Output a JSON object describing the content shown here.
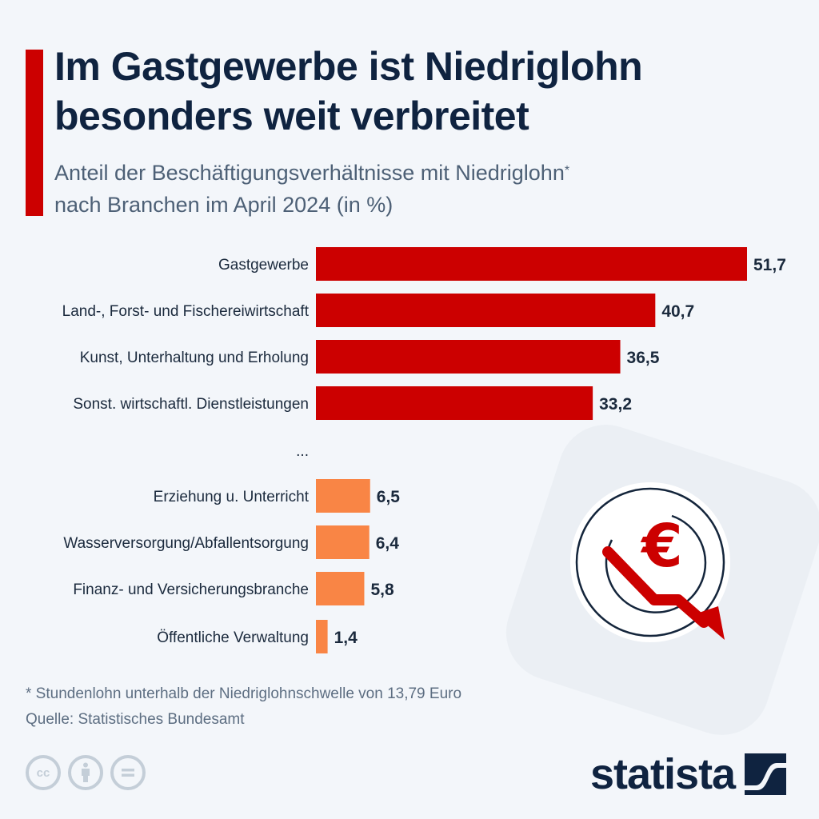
{
  "header": {
    "title": "Im Gastgewerbe ist Niedriglohn besonders weit verbreitet",
    "subtitle_line1": "Anteil der Beschäftigungsverhältnisse mit Niedriglohn",
    "subtitle_marker": "*",
    "subtitle_line2": "nach Branchen im April 2024 (in %)"
  },
  "chart_data": {
    "type": "bar",
    "orientation": "horizontal",
    "title": "Im Gastgewerbe ist Niedriglohn besonders weit verbreitet",
    "subtitle": "Anteil der Beschäftigungsverhältnisse mit Niedriglohn* nach Branchen im April 2024 (in %)",
    "xlabel": "",
    "ylabel": "",
    "unit": "%",
    "xlim": [
      0,
      51.7
    ],
    "grid": false,
    "legend": "none",
    "gap_label": "...",
    "categories": [
      "Gastgewerbe",
      "Land-, Forst- und Fischereiwirtschaft",
      "Kunst, Unterhaltung und Erholung",
      "Sonst. wirtschaftl. Dienstleistungen",
      "Erziehung u. Unterricht",
      "Wasserversorgung/Abfallentsorgung",
      "Finanz- und Versicherungsbranche",
      "Öffentliche Verwaltung"
    ],
    "values": [
      51.7,
      40.7,
      36.5,
      33.2,
      6.5,
      6.4,
      5.8,
      1.4
    ],
    "value_labels": [
      "51,7",
      "40,7",
      "36,5",
      "33,2",
      "6,5",
      "6,4",
      "5,8",
      "1,4"
    ],
    "groups": [
      "top",
      "top",
      "top",
      "top",
      "bottom",
      "bottom",
      "bottom",
      "bottom"
    ],
    "colors": {
      "top": "#cc0000",
      "bottom": "#f98545"
    }
  },
  "footer": {
    "footnote": "* Stundenlohn unterhalb der Niedriglohnschwelle von 13,79 Euro",
    "source": "Quelle: Statistisches Bundesamt",
    "cc_labels": [
      "cc",
      "",
      ""
    ],
    "logo_text": "statista"
  },
  "colors": {
    "accent": "#cc0000",
    "title": "#0f2340",
    "background": "#f3f6fa"
  }
}
